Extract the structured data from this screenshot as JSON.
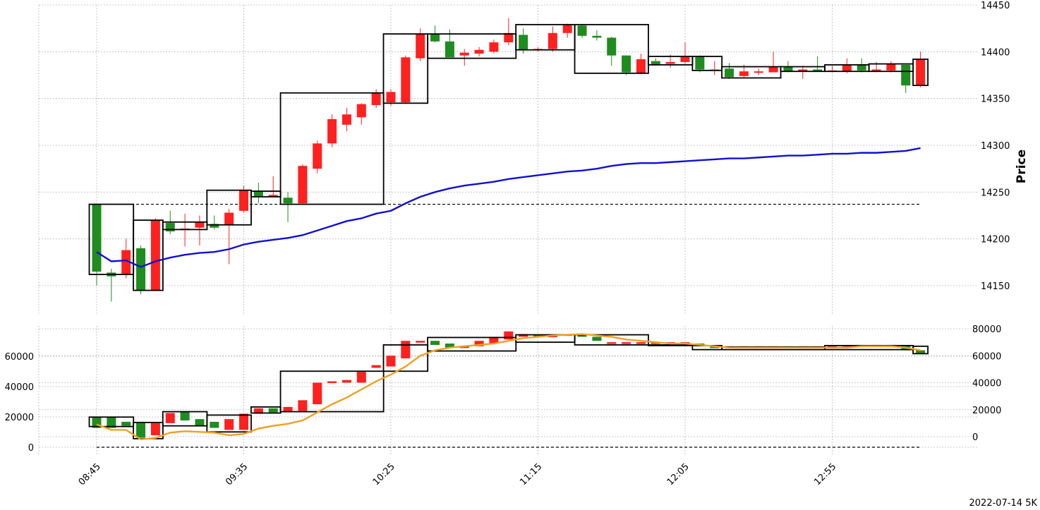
{
  "chart_data": [
    {
      "type": "candlestick",
      "id": "price-panel",
      "ylabel": "Price",
      "ylim": [
        14115,
        14450
      ],
      "yticks": [
        14150,
        14200,
        14250,
        14300,
        14350,
        14400,
        14450
      ],
      "grid": true,
      "colors": {
        "up": "#ff2020",
        "down": "#1f8c1f",
        "ma": "#1010d0",
        "box": "#000000",
        "refline": "#000000"
      },
      "x_ticks": [
        "08:45",
        "09:35",
        "10:25",
        "11:15",
        "12:05",
        "12:55"
      ],
      "x_tick_indices": [
        0,
        10,
        20,
        30,
        40,
        50
      ],
      "reference_line": 14237,
      "candles": [
        [
          14237,
          14237,
          14150,
          14165
        ],
        [
          14164,
          14168,
          14133,
          14160
        ],
        [
          14162,
          14200,
          14158,
          14188
        ],
        [
          14190,
          14193,
          14141,
          14145
        ],
        [
          14145,
          14222,
          14145,
          14220
        ],
        [
          14217,
          14230,
          14205,
          14208
        ],
        [
          14210,
          14227,
          14192,
          14211
        ],
        [
          14212,
          14225,
          14193,
          14218
        ],
        [
          14216,
          14225,
          14210,
          14212
        ],
        [
          14215,
          14232,
          14173,
          14228
        ],
        [
          14230,
          14257,
          14228,
          14252
        ],
        [
          14251,
          14260,
          14238,
          14245
        ],
        [
          14245,
          14267,
          14245,
          14247
        ],
        [
          14244,
          14250,
          14218,
          14238
        ],
        [
          14238,
          14280,
          14238,
          14278
        ],
        [
          14275,
          14305,
          14270,
          14302
        ],
        [
          14302,
          14333,
          14298,
          14328
        ],
        [
          14322,
          14340,
          14315,
          14333
        ],
        [
          14330,
          14345,
          14322,
          14344
        ],
        [
          14343,
          14360,
          14340,
          14356
        ],
        [
          14346,
          14360,
          14342,
          14357
        ],
        [
          14346,
          14396,
          14345,
          14394
        ],
        [
          14393,
          14425,
          14390,
          14419
        ],
        [
          14419,
          14428,
          14410,
          14411
        ],
        [
          14411,
          14424,
          14395,
          14394
        ],
        [
          14396,
          14403,
          14385,
          14399
        ],
        [
          14398,
          14405,
          14395,
          14402
        ],
        [
          14400,
          14413,
          14398,
          14410
        ],
        [
          14410,
          14436,
          14407,
          14420
        ],
        [
          14418,
          14425,
          14398,
          14402
        ],
        [
          14402,
          14405,
          14400,
          14403
        ],
        [
          14403,
          14427,
          14400,
          14420
        ],
        [
          14420,
          14430,
          14415,
          14429
        ],
        [
          14428,
          14429,
          14415,
          14417
        ],
        [
          14417,
          14423,
          14412,
          14415
        ],
        [
          14415,
          14416,
          14385,
          14396
        ],
        [
          14396,
          14396,
          14375,
          14378
        ],
        [
          14377,
          14398,
          14376,
          14392
        ],
        [
          14390,
          14393,
          14385,
          14386
        ],
        [
          14387,
          14397,
          14383,
          14389
        ],
        [
          14389,
          14410,
          14387,
          14395
        ],
        [
          14395,
          14396,
          14378,
          14381
        ],
        [
          14380,
          14390,
          14375,
          14381
        ],
        [
          14382,
          14388,
          14371,
          14373
        ],
        [
          14374,
          14386,
          14373,
          14379
        ],
        [
          14378,
          14382,
          14375,
          14379
        ],
        [
          14378,
          14400,
          14378,
          14384
        ],
        [
          14384,
          14390,
          14378,
          14379
        ],
        [
          14379,
          14385,
          14371,
          14381
        ],
        [
          14381,
          14395,
          14379,
          14380
        ],
        [
          14379,
          14385,
          14378,
          14380
        ],
        [
          14379,
          14393,
          14377,
          14386
        ],
        [
          14386,
          14393,
          14378,
          14380
        ],
        [
          14380,
          14389,
          14378,
          14381
        ],
        [
          14380,
          14390,
          14378,
          14387
        ],
        [
          14386,
          14386,
          14356,
          14364
        ],
        [
          14364,
          14400,
          14362,
          14392
        ]
      ],
      "ma": [
        14186,
        14176,
        14177,
        14170,
        14176,
        14180,
        14183,
        14185,
        14186,
        14189,
        14194,
        14197,
        14199,
        14201,
        14204,
        14209,
        14214,
        14219,
        14222,
        14227,
        14230,
        14238,
        14245,
        14250,
        14254,
        14257,
        14259,
        14261,
        14264,
        14266,
        14268,
        14270,
        14272,
        14273,
        14275,
        14278,
        14280,
        14281,
        14281,
        14282,
        14283,
        14284,
        14285,
        14286,
        14286,
        14287,
        14288,
        14289,
        14289,
        14290,
        14291,
        14291,
        14292,
        14292,
        14293,
        14294,
        14297
      ],
      "boxes": [
        {
          "from": 0,
          "to": 2,
          "low": 14162,
          "high": 14237
        },
        {
          "from": 3,
          "to": 4,
          "low": 14145,
          "high": 14220
        },
        {
          "from": 5,
          "to": 7,
          "low": 14210,
          "high": 14218
        },
        {
          "from": 8,
          "to": 10,
          "low": 14215,
          "high": 14252
        },
        {
          "from": 11,
          "to": 12,
          "low": 14245,
          "high": 14251
        },
        {
          "from": 13,
          "to": 19,
          "low": 14237,
          "high": 14356
        },
        {
          "from": 20,
          "to": 22,
          "low": 14345,
          "high": 14419
        },
        {
          "from": 23,
          "to": 28,
          "low": 14393,
          "high": 14419
        },
        {
          "from": 29,
          "to": 32,
          "low": 14402,
          "high": 14429
        },
        {
          "from": 33,
          "to": 37,
          "low": 14377,
          "high": 14429
        },
        {
          "from": 38,
          "to": 40,
          "low": 14386,
          "high": 14395
        },
        {
          "from": 41,
          "to": 42,
          "low": 14380,
          "high": 14395
        },
        {
          "from": 43,
          "to": 46,
          "low": 14372,
          "high": 14384
        },
        {
          "from": 47,
          "to": 49,
          "low": 14379,
          "high": 14384
        },
        {
          "from": 50,
          "to": 52,
          "low": 14379,
          "high": 14386
        },
        {
          "from": 53,
          "to": 55,
          "low": 14379,
          "high": 14387
        },
        {
          "from": 56,
          "to": 56,
          "low": 14364,
          "high": 14392
        }
      ]
    },
    {
      "type": "candlestick",
      "id": "indicator-panel",
      "ylim_left": [
        -8000,
        73000
      ],
      "yticks_left": [
        0,
        20000,
        40000,
        60000
      ],
      "ylim_right": [
        -8000,
        80000
      ],
      "yticks_right": [
        0,
        20000,
        40000,
        60000,
        80000
      ],
      "grid": true,
      "colors": {
        "up": "#ff2020",
        "down": "#1f8c1f",
        "ma": "#f0a020",
        "box": "#000000",
        "refline": "#000000"
      },
      "reference_line": 0,
      "candles": [
        [
          14500,
          6500
        ],
        [
          14500,
          6500
        ],
        [
          11000,
          8000
        ],
        [
          11000,
          -800
        ],
        [
          1000,
          10000
        ],
        [
          10000,
          17500
        ],
        [
          18500,
          12000
        ],
        [
          13000,
          8000
        ],
        [
          11000,
          6500
        ],
        [
          5000,
          13000
        ],
        [
          5000,
          17000
        ],
        [
          17000,
          21000
        ],
        [
          21000,
          18000
        ],
        [
          18000,
          22000
        ],
        [
          19000,
          27000
        ],
        [
          24000,
          40000
        ],
        [
          40000,
          41000
        ],
        [
          40000,
          42000
        ],
        [
          40000,
          48000
        ],
        [
          51000,
          53000
        ],
        [
          52000,
          60000
        ],
        [
          58000,
          71000
        ],
        [
          70000,
          71000
        ],
        [
          71000,
          68000
        ],
        [
          69000,
          66000
        ],
        [
          66000,
          67000
        ],
        [
          67000,
          71000
        ],
        [
          69000,
          74000
        ],
        [
          72000,
          78000
        ],
        [
          74000,
          76000
        ],
        [
          75000,
          74000
        ],
        [
          75000,
          75000
        ],
        [
          75000,
          76000
        ],
        [
          76000,
          74000
        ],
        [
          74000,
          71000
        ],
        [
          70000,
          70000
        ],
        [
          70000,
          70000
        ],
        [
          70000,
          70000
        ],
        [
          70000,
          70000
        ],
        [
          70000,
          70000
        ],
        [
          69000,
          70000
        ],
        [
          69000,
          67000
        ],
        [
          67000,
          66000
        ],
        [
          66000,
          67000
        ],
        [
          66000,
          67000
        ],
        [
          67000,
          67000
        ],
        [
          66000,
          67000
        ],
        [
          67000,
          66000
        ],
        [
          66000,
          67000
        ],
        [
          66000,
          67000
        ],
        [
          67000,
          67000
        ],
        [
          67000,
          68000
        ],
        [
          68000,
          68000
        ],
        [
          68000,
          68000
        ],
        [
          68000,
          68000
        ],
        [
          68000,
          64000
        ],
        [
          64000,
          62000
        ]
      ],
      "ma": [
        9000,
        5000,
        5000,
        -2000,
        -1000,
        3000,
        4000,
        3500,
        3000,
        1000,
        2000,
        6000,
        8000,
        9500,
        12000,
        18000,
        24000,
        29000,
        35000,
        41000,
        46000,
        52000,
        60000,
        64000,
        66000,
        67000,
        68000,
        69000,
        71000,
        73000,
        74000,
        75000,
        75500,
        76000,
        75000,
        74000,
        72000,
        71000,
        70000,
        69000,
        69000,
        68000,
        67000,
        66000,
        66000,
        66000,
        66000,
        66000,
        66000,
        66000,
        66000,
        66000,
        67000,
        67000,
        67000,
        66000,
        64000
      ],
      "boxes": [
        {
          "from": 0,
          "to": 2,
          "low": 7500,
          "high": 14500
        },
        {
          "from": 3,
          "to": 4,
          "low": -1500,
          "high": 10500
        },
        {
          "from": 5,
          "to": 7,
          "low": 8000,
          "high": 18500
        },
        {
          "from": 8,
          "to": 10,
          "low": 3500,
          "high": 16000
        },
        {
          "from": 11,
          "to": 12,
          "low": 17500,
          "high": 22000
        },
        {
          "from": 13,
          "to": 19,
          "low": 18500,
          "high": 48500
        },
        {
          "from": 20,
          "to": 22,
          "low": 48500,
          "high": 68000
        },
        {
          "from": 23,
          "to": 28,
          "low": 63500,
          "high": 73500
        },
        {
          "from": 29,
          "to": 32,
          "low": 70000,
          "high": 75500
        },
        {
          "from": 33,
          "to": 37,
          "low": 68000,
          "high": 75500
        },
        {
          "from": 38,
          "to": 40,
          "low": 67500,
          "high": 68000
        },
        {
          "from": 41,
          "to": 42,
          "low": 64500,
          "high": 67500
        },
        {
          "from": 43,
          "to": 49,
          "low": 64500,
          "high": 66500
        },
        {
          "from": 50,
          "to": 55,
          "low": 64500,
          "high": 67500
        },
        {
          "from": 56,
          "to": 56,
          "low": 61500,
          "high": 67000
        }
      ]
    }
  ],
  "footer": "2022-07-14 5K"
}
